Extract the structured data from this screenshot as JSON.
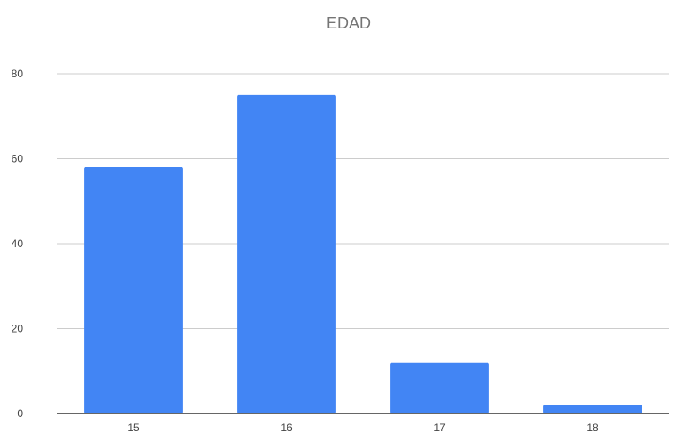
{
  "colors": {
    "bar": "#4285f4",
    "grid": "#cccccc",
    "axis": "#333333",
    "title": "#757575"
  },
  "chart_data": {
    "type": "bar",
    "title": "EDAD",
    "xlabel": "",
    "ylabel": "",
    "categories": [
      "15",
      "16",
      "17",
      "18"
    ],
    "values": [
      58,
      75,
      12,
      2
    ],
    "ylim": [
      0,
      80
    ],
    "yticks": [
      0,
      20,
      40,
      60,
      80
    ],
    "grid": true,
    "legend": "none"
  }
}
